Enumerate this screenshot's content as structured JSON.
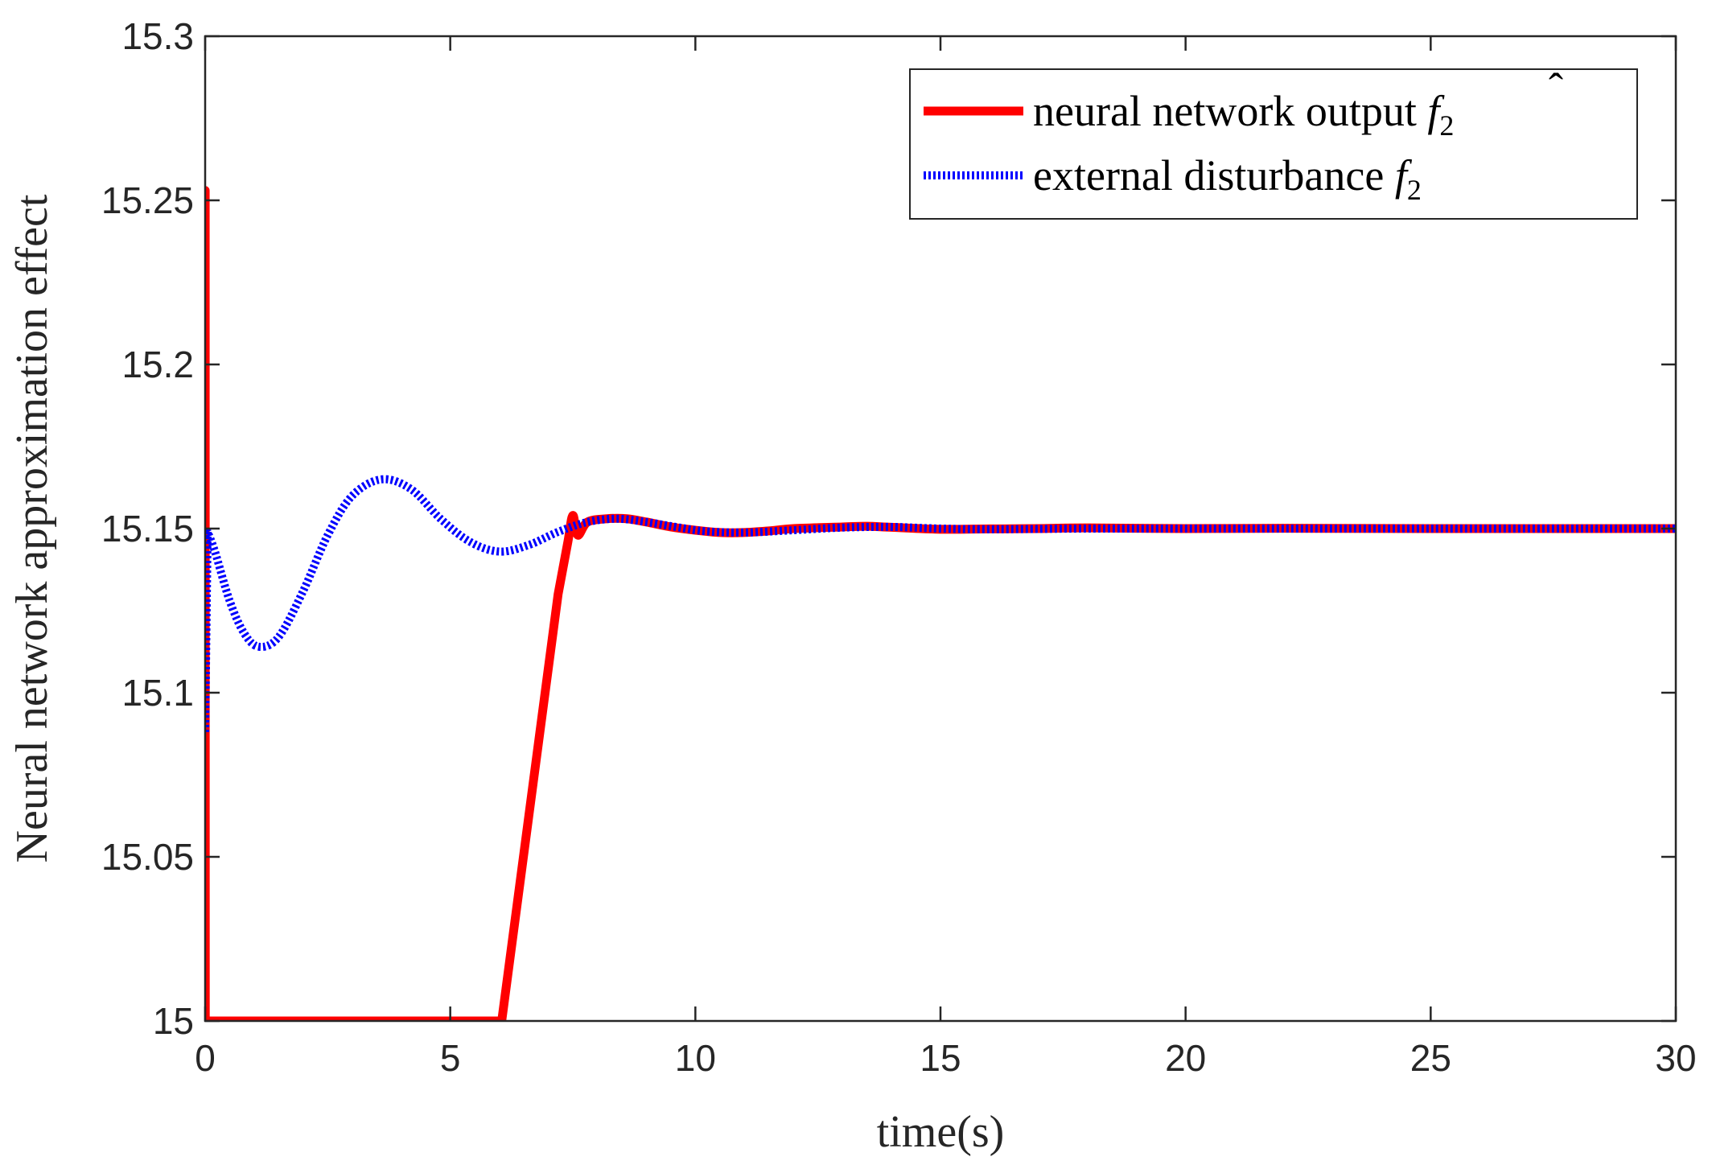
{
  "chart_data": {
    "type": "line",
    "title": "",
    "xlabel": "time(s)",
    "ylabel": "Neural network approximation effect",
    "xlim": [
      0,
      30
    ],
    "ylim": [
      15,
      15.3
    ],
    "xticks": [
      "0",
      "5",
      "10",
      "15",
      "20",
      "25",
      "30"
    ],
    "yticks": [
      "15",
      "15.05",
      "15.1",
      "15.15",
      "15.2",
      "15.25",
      "15.3"
    ],
    "grid": false,
    "legend_position": "top-right",
    "series": [
      {
        "name": "neural network output f̂₂",
        "legend_main": "neural network output ",
        "legend_symbol": "f",
        "legend_sub": "2",
        "color": "#ff0000",
        "style": "solid",
        "x": [
          0,
          0.001,
          0.002,
          0.003,
          6.05,
          7.2,
          7.4,
          7.5,
          7.6,
          7.8,
          8.2,
          8.6,
          9.0,
          9.5,
          10.0,
          10.5,
          11.0,
          11.5,
          12.0,
          13.0,
          13.5,
          14.0,
          15.0,
          16.0,
          17.0,
          18.0,
          20.0,
          22.0,
          25.0,
          28.0,
          30.0
        ],
        "y": [
          15.0,
          15.253,
          15.09,
          15.0,
          15.0,
          15.13,
          15.146,
          15.154,
          15.148,
          15.152,
          15.153,
          15.153,
          15.152,
          15.1505,
          15.1495,
          15.1488,
          15.1488,
          15.1493,
          15.15,
          15.1505,
          15.1507,
          15.1504,
          15.1498,
          15.1499,
          15.15,
          15.1502,
          15.15,
          15.1501,
          15.15,
          15.15,
          15.15
        ]
      },
      {
        "name": "external disturbance f₂",
        "legend_main": "external disturbance ",
        "legend_symbol": "f",
        "legend_sub": "2",
        "color": "#0000ff",
        "style": "dotted",
        "x": [
          0,
          0.05,
          0.2,
          0.5,
          0.8,
          1.1,
          1.5,
          2.0,
          2.5,
          3.0,
          3.6,
          4.2,
          4.8,
          5.4,
          6.0,
          6.6,
          7.2,
          7.8,
          8.4,
          9.0,
          9.6,
          10.2,
          11.0,
          12.0,
          13.0,
          14.0,
          15.0,
          16.0,
          18.0,
          20.0,
          25.0,
          30.0
        ],
        "y": [
          15.088,
          15.149,
          15.143,
          15.128,
          15.118,
          15.114,
          15.117,
          15.131,
          15.148,
          15.16,
          15.165,
          15.162,
          15.153,
          15.146,
          15.143,
          15.145,
          15.149,
          15.152,
          15.153,
          15.152,
          15.1505,
          15.1492,
          15.1488,
          15.1495,
          15.1503,
          15.1505,
          15.15,
          15.1498,
          15.15,
          15.15,
          15.15,
          15.15
        ]
      }
    ]
  }
}
